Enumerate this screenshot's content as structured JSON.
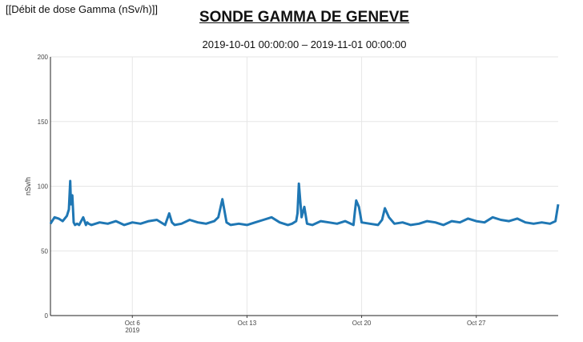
{
  "header": {
    "top_label": "[[Débit de dose Gamma (nSv/h)]]",
    "title": "SONDE GAMMA DE GENEVE",
    "subtitle": "2019-10-01 00:00:00 – 2019-11-01 00:00:00"
  },
  "chart_data": {
    "type": "line",
    "ylabel": "nSv/h",
    "ylim": [
      0,
      200
    ],
    "yticks": [
      0,
      50,
      100,
      150,
      200
    ],
    "x_range": [
      "2019-10-01",
      "2019-11-01"
    ],
    "xticks": [
      {
        "date": "2019-10-06",
        "label": "Oct 6",
        "sub": "2019"
      },
      {
        "date": "2019-10-13",
        "label": "Oct 13"
      },
      {
        "date": "2019-10-20",
        "label": "Oct 20"
      },
      {
        "date": "2019-10-27",
        "label": "Oct 27"
      }
    ],
    "grid": true,
    "line_color": "#1f77b4",
    "series": [
      {
        "x": [
          "2019-10-01 00:00",
          "2019-10-01 06:00",
          "2019-10-01 12:00",
          "2019-10-01 18:00",
          "2019-10-02 00:00",
          "2019-10-02 03:00",
          "2019-10-02 05:00",
          "2019-10-02 06:00",
          "2019-10-02 08:00",
          "2019-10-02 10:00",
          "2019-10-02 12:00",
          "2019-10-02 15:00",
          "2019-10-02 18:00",
          "2019-10-03 00:00",
          "2019-10-03 04:00",
          "2019-10-03 06:00",
          "2019-10-03 08:00",
          "2019-10-03 12:00",
          "2019-10-04 00:00",
          "2019-10-04 12:00",
          "2019-10-05 00:00",
          "2019-10-05 12:00",
          "2019-10-06 00:00",
          "2019-10-06 12:00",
          "2019-10-07 00:00",
          "2019-10-07 12:00",
          "2019-10-08 00:00",
          "2019-10-08 06:00",
          "2019-10-08 10:00",
          "2019-10-08 14:00",
          "2019-10-09 00:00",
          "2019-10-09 12:00",
          "2019-10-10 00:00",
          "2019-10-10 12:00",
          "2019-10-11 00:00",
          "2019-10-11 06:00",
          "2019-10-11 12:00",
          "2019-10-11 18:00",
          "2019-10-12 00:00",
          "2019-10-12 12:00",
          "2019-10-13 00:00",
          "2019-10-13 12:00",
          "2019-10-14 00:00",
          "2019-10-14 12:00",
          "2019-10-15 00:00",
          "2019-10-15 12:00",
          "2019-10-15 18:00",
          "2019-10-16 00:00",
          "2019-10-16 02:00",
          "2019-10-16 04:00",
          "2019-10-16 08:00",
          "2019-10-16 12:00",
          "2019-10-16 16:00",
          "2019-10-17 00:00",
          "2019-10-17 12:00",
          "2019-10-18 00:00",
          "2019-10-18 12:00",
          "2019-10-19 00:00",
          "2019-10-19 12:00",
          "2019-10-19 14:00",
          "2019-10-19 16:00",
          "2019-10-19 20:00",
          "2019-10-20 00:00",
          "2019-10-20 12:00",
          "2019-10-21 00:00",
          "2019-10-21 06:00",
          "2019-10-21 10:00",
          "2019-10-21 16:00",
          "2019-10-22 00:00",
          "2019-10-22 12:00",
          "2019-10-23 00:00",
          "2019-10-23 12:00",
          "2019-10-24 00:00",
          "2019-10-24 12:00",
          "2019-10-25 00:00",
          "2019-10-25 12:00",
          "2019-10-26 00:00",
          "2019-10-26 12:00",
          "2019-10-27 00:00",
          "2019-10-27 12:00",
          "2019-10-28 00:00",
          "2019-10-28 12:00",
          "2019-10-29 00:00",
          "2019-10-29 12:00",
          "2019-10-30 00:00",
          "2019-10-30 12:00",
          "2019-10-31 00:00",
          "2019-10-31 12:00",
          "2019-10-31 20:00",
          "2019-11-01 00:00"
        ],
        "y": [
          71,
          76,
          75,
          73,
          77,
          82,
          104,
          86,
          93,
          72,
          70,
          71,
          70,
          76,
          70,
          72,
          71,
          70,
          72,
          71,
          73,
          70,
          72,
          71,
          73,
          74,
          70,
          79,
          72,
          70,
          71,
          74,
          72,
          71,
          73,
          76,
          90,
          72,
          70,
          71,
          70,
          72,
          74,
          76,
          72,
          70,
          71,
          73,
          79,
          102,
          76,
          84,
          71,
          70,
          73,
          72,
          71,
          73,
          70,
          80,
          89,
          84,
          72,
          71,
          70,
          74,
          83,
          76,
          71,
          72,
          70,
          71,
          73,
          72,
          70,
          73,
          72,
          75,
          73,
          72,
          76,
          74,
          73,
          75,
          72,
          71,
          72,
          71,
          73,
          86
        ]
      }
    ]
  }
}
